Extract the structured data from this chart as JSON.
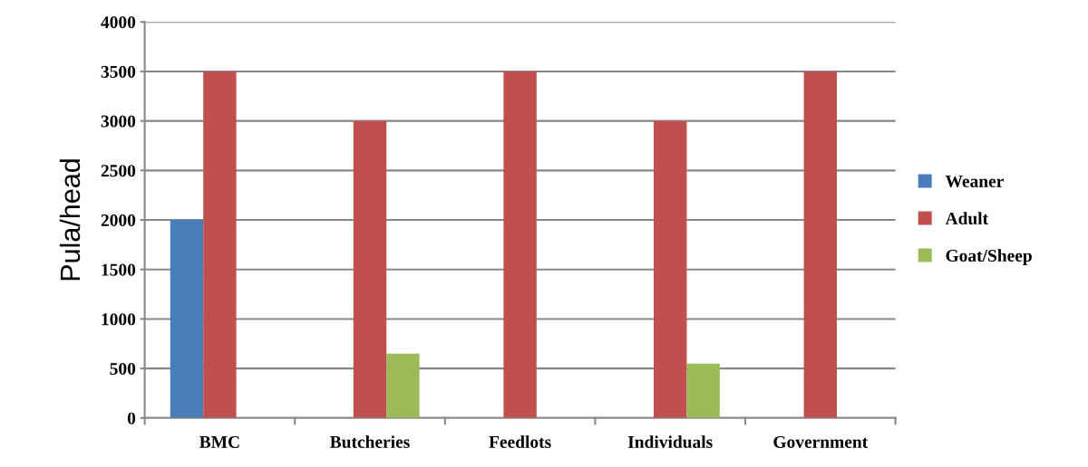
{
  "chart_data": {
    "type": "bar",
    "ylabel": "Pula/head",
    "categories": [
      "BMC",
      "Butcheries",
      "Feedlots",
      "Individuals",
      "Government"
    ],
    "series": [
      {
        "name": "Weaner",
        "color": "#4a7ebb",
        "values": [
          2000,
          null,
          null,
          null,
          null
        ]
      },
      {
        "name": "Adult",
        "color": "#c0504d",
        "values": [
          3500,
          3000,
          3500,
          3000,
          3500
        ]
      },
      {
        "name": "Goat/Sheep",
        "color": "#9bbb59",
        "values": [
          null,
          650,
          null,
          550,
          null
        ]
      }
    ],
    "ylim": [
      0,
      4000
    ],
    "yticks": [
      0,
      500,
      1000,
      1500,
      2000,
      2500,
      3000,
      3500,
      4000
    ],
    "grid": "y",
    "legend": "right"
  }
}
